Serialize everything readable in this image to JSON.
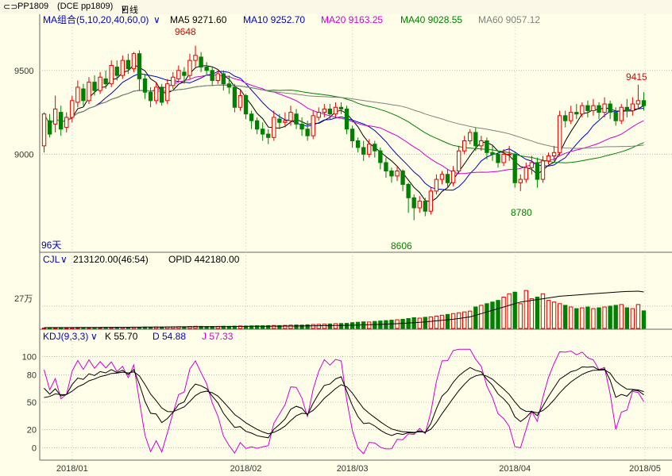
{
  "window": {
    "symbol": "PP1809",
    "exchange_code": "(DCE pp1809)",
    "period": "日线"
  },
  "colors": {
    "background": "#ffffe9",
    "up": "#e00000",
    "down": "#008000",
    "ma5": "#000000",
    "ma10": "#0000c8",
    "ma20": "#d000d0",
    "ma40": "#008000",
    "ma60": "#808080"
  },
  "price_panel": {
    "indicator_name": "MA组合(5,10,20,40,60,0)",
    "ma5_label": "MA5 9271.60",
    "ma10_label": "MA10 9252.70",
    "ma20_label": "MA20 9163.25",
    "ma40_label": "MA40 9028.55",
    "ma60_label": "MA60 9057.12",
    "high_label": "9648",
    "low_label": "8606",
    "local_low_label": "8780",
    "recent_high_label": "9415",
    "days_label": "96天"
  },
  "volume_panel": {
    "indicator_name": "CJL",
    "volume_label": "213120.00(46:54)",
    "opid_label": "OPID 442180.00",
    "unit_label": "27万"
  },
  "kdj_panel": {
    "indicator_name": "KDJ(9,3,3)",
    "k_label": "K 55.70",
    "d_label": "D 54.88",
    "j_label": "J 57.33"
  },
  "chart_data": {
    "type": "candlestick",
    "price_axis": {
      "ticks": [
        "9500",
        "9000"
      ],
      "range": [
        8500,
        9750
      ]
    },
    "volume_axis": {
      "ticks": [
        "27万"
      ],
      "range": [
        0,
        750000
      ]
    },
    "kdj_axis": {
      "ticks": [
        "100",
        "80",
        "50",
        "20",
        "0"
      ],
      "range": [
        -10,
        110
      ]
    },
    "x_labels": [
      "2018/01",
      "2018/02",
      "2018/03",
      "2018/04",
      "2018/05"
    ],
    "x_label_index": [
      5,
      36,
      55,
      84,
      120
    ],
    "candles": [
      [
        9050,
        9240,
        9010,
        9250
      ],
      [
        9200,
        9120,
        9100,
        9240
      ],
      [
        9180,
        9270,
        9130,
        9350
      ],
      [
        9250,
        9150,
        9110,
        9290
      ],
      [
        9160,
        9220,
        9130,
        9250
      ],
      [
        9220,
        9320,
        9190,
        9350
      ],
      [
        9310,
        9400,
        9280,
        9440
      ],
      [
        9390,
        9320,
        9290,
        9420
      ],
      [
        9320,
        9430,
        9300,
        9460
      ],
      [
        9430,
        9380,
        9350,
        9470
      ],
      [
        9380,
        9460,
        9360,
        9490
      ],
      [
        9450,
        9420,
        9390,
        9500
      ],
      [
        9420,
        9530,
        9400,
        9560
      ],
      [
        9520,
        9470,
        9440,
        9560
      ],
      [
        9470,
        9560,
        9450,
        9590
      ],
      [
        9560,
        9510,
        9480,
        9600
      ],
      [
        9510,
        9600,
        9490,
        9610
      ],
      [
        9600,
        9450,
        9380,
        9620
      ],
      [
        9450,
        9370,
        9330,
        9480
      ],
      [
        9370,
        9320,
        9280,
        9400
      ],
      [
        9320,
        9400,
        9300,
        9430
      ],
      [
        9400,
        9310,
        9290,
        9420
      ],
      [
        9320,
        9420,
        9300,
        9450
      ],
      [
        9410,
        9460,
        9390,
        9490
      ],
      [
        9450,
        9500,
        9430,
        9530
      ],
      [
        9490,
        9470,
        9420,
        9520
      ],
      [
        9470,
        9560,
        9450,
        9600
      ],
      [
        9560,
        9590,
        9520,
        9648
      ],
      [
        9580,
        9520,
        9490,
        9610
      ],
      [
        9520,
        9500,
        9470,
        9550
      ],
      [
        9500,
        9440,
        9410,
        9520
      ],
      [
        9440,
        9480,
        9420,
        9500
      ],
      [
        9480,
        9420,
        9380,
        9500
      ],
      [
        9420,
        9400,
        9360,
        9470
      ],
      [
        9400,
        9280,
        9250,
        9420
      ],
      [
        9280,
        9350,
        9260,
        9380
      ],
      [
        9350,
        9240,
        9210,
        9360
      ],
      [
        9240,
        9200,
        9150,
        9260
      ],
      [
        9200,
        9150,
        9120,
        9220
      ],
      [
        9150,
        9120,
        9080,
        9190
      ],
      [
        9120,
        9100,
        9060,
        9150
      ],
      [
        9100,
        9220,
        9080,
        9260
      ],
      [
        9210,
        9190,
        9150,
        9240
      ],
      [
        9190,
        9200,
        9160,
        9250
      ],
      [
        9200,
        9250,
        9170,
        9290
      ],
      [
        9240,
        9180,
        9150,
        9270
      ],
      [
        9180,
        9150,
        9110,
        9220
      ],
      [
        9150,
        9110,
        9080,
        9200
      ],
      [
        9110,
        9230,
        9090,
        9260
      ],
      [
        9220,
        9250,
        9200,
        9280
      ],
      [
        9250,
        9270,
        9220,
        9300
      ],
      [
        9270,
        9240,
        9210,
        9300
      ],
      [
        9240,
        9280,
        9220,
        9310
      ],
      [
        9280,
        9270,
        9240,
        9310
      ],
      [
        9270,
        9150,
        9120,
        9290
      ],
      [
        9150,
        9080,
        9040,
        9170
      ],
      [
        9080,
        9040,
        9010,
        9100
      ],
      [
        9040,
        9000,
        8960,
        9080
      ],
      [
        9000,
        9060,
        8980,
        9090
      ],
      [
        9060,
        9020,
        8980,
        9080
      ],
      [
        9020,
        8950,
        8910,
        9040
      ],
      [
        8950,
        8900,
        8860,
        8980
      ],
      [
        8900,
        8870,
        8830,
        8920
      ],
      [
        8870,
        8900,
        8840,
        8930
      ],
      [
        8900,
        8820,
        8780,
        8910
      ],
      [
        8820,
        8740,
        8650,
        8830
      ],
      [
        8740,
        8680,
        8606,
        8760
      ],
      [
        8680,
        8720,
        8650,
        8750
      ],
      [
        8720,
        8660,
        8630,
        8740
      ],
      [
        8660,
        8780,
        8640,
        8800
      ],
      [
        8780,
        8850,
        8760,
        8880
      ],
      [
        8850,
        8880,
        8820,
        8900
      ],
      [
        8880,
        8830,
        8800,
        8910
      ],
      [
        8830,
        8900,
        8810,
        8930
      ],
      [
        8900,
        9020,
        8880,
        9050
      ],
      [
        9020,
        9080,
        9000,
        9110
      ],
      [
        9080,
        9130,
        9060,
        9150
      ],
      [
        9130,
        9050,
        9020,
        9160
      ],
      [
        9050,
        9080,
        9020,
        9110
      ],
      [
        9080,
        9010,
        8970,
        9100
      ],
      [
        9010,
        9000,
        8960,
        9050
      ],
      [
        9000,
        8950,
        8920,
        9020
      ],
      [
        8950,
        9000,
        8930,
        9030
      ],
      [
        9000,
        9000,
        8960,
        9050
      ],
      [
        9000,
        8830,
        8800,
        9010
      ],
      [
        8830,
        8850,
        8780,
        8880
      ],
      [
        8850,
        8920,
        8830,
        8950
      ],
      [
        8920,
        8950,
        8880,
        8990
      ],
      [
        8950,
        8850,
        8800,
        8980
      ],
      [
        8850,
        8960,
        8830,
        8990
      ],
      [
        8960,
        8990,
        8940,
        9010
      ],
      [
        8990,
        9010,
        8960,
        9050
      ],
      [
        9010,
        9230,
        8990,
        9260
      ],
      [
        9230,
        9200,
        9160,
        9260
      ],
      [
        9200,
        9250,
        9180,
        9290
      ],
      [
        9250,
        9240,
        9210,
        9300
      ],
      [
        9240,
        9290,
        9220,
        9310
      ],
      [
        9290,
        9260,
        9220,
        9320
      ],
      [
        9260,
        9290,
        9230,
        9330
      ],
      [
        9290,
        9250,
        9210,
        9310
      ],
      [
        9250,
        9300,
        9220,
        9340
      ],
      [
        9300,
        9250,
        9210,
        9320
      ],
      [
        9250,
        9200,
        9170,
        9280
      ],
      [
        9200,
        9280,
        9180,
        9300
      ],
      [
        9280,
        9260,
        9220,
        9330
      ],
      [
        9260,
        9300,
        9230,
        9340
      ],
      [
        9300,
        9320,
        9270,
        9415
      ],
      [
        9320,
        9290,
        9260,
        9370
      ]
    ],
    "volume": [
      5000,
      4500,
      5500,
      6000,
      5000,
      7000,
      8000,
      7000,
      9000,
      8000,
      10000,
      9000,
      12000,
      11000,
      13000,
      12000,
      15000,
      14000,
      16000,
      15000,
      18000,
      17000,
      19000,
      20000,
      22000,
      21000,
      24000,
      26000,
      25000,
      23000,
      24000,
      25000,
      27000,
      26000,
      28000,
      30000,
      29000,
      31000,
      33000,
      32000,
      34000,
      36000,
      35000,
      37000,
      40000,
      42000,
      41000,
      45000,
      48000,
      50000,
      52000,
      55000,
      58000,
      60000,
      62000,
      70000,
      75000,
      80000,
      78000,
      85000,
      90000,
      95000,
      100000,
      105000,
      110000,
      120000,
      130000,
      125000,
      135000,
      140000,
      150000,
      160000,
      170000,
      180000,
      190000,
      200000,
      210000,
      260000,
      280000,
      300000,
      320000,
      340000,
      380000,
      420000,
      440000,
      300000,
      460000,
      360000,
      380000,
      420000,
      340000,
      320000,
      300000,
      280000,
      260000,
      240000,
      250000,
      260000,
      240000,
      250000,
      260000,
      270000,
      280000,
      290000,
      250000,
      240000,
      290000,
      213120
    ],
    "opid": [
      10000,
      10200,
      10400,
      10600,
      10800,
      11000,
      11300,
      11600,
      12000,
      12400,
      12800,
      13200,
      13600,
      14000,
      14400,
      14800,
      15200,
      15600,
      16000,
      16500,
      17000,
      17500,
      18000,
      18500,
      19000,
      19500,
      20000,
      20500,
      21000,
      21500,
      22000,
      22500,
      23000,
      23500,
      24000,
      24500,
      25000,
      25500,
      26000,
      26500,
      27000,
      27500,
      28000,
      28500,
      29000,
      29500,
      30000,
      31000,
      32000,
      33000,
      34000,
      35000,
      36000,
      37000,
      38000,
      39000,
      41000,
      43000,
      45000,
      47000,
      49000,
      52000,
      55000,
      58000,
      62000,
      66000,
      70000,
      75000,
      80000,
      86000,
      92000,
      98000,
      105000,
      112000,
      120000,
      130000,
      140000,
      160000,
      180000,
      200000,
      220000,
      240000,
      260000,
      280000,
      300000,
      320000,
      330000,
      340000,
      350000,
      360000,
      370000,
      380000,
      390000,
      395000,
      400000,
      405000,
      410000,
      415000,
      420000,
      425000,
      430000,
      435000,
      440000,
      445000,
      448000,
      450000,
      452000,
      442180
    ]
  }
}
